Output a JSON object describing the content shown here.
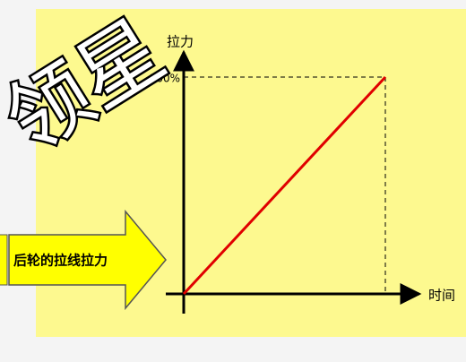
{
  "arrow_label": "后轮的拉线拉力",
  "graph": {
    "y_axis_label": "拉力",
    "x_axis_label": "时间",
    "y_max_label": "100%"
  },
  "watermark": "领星"
}
